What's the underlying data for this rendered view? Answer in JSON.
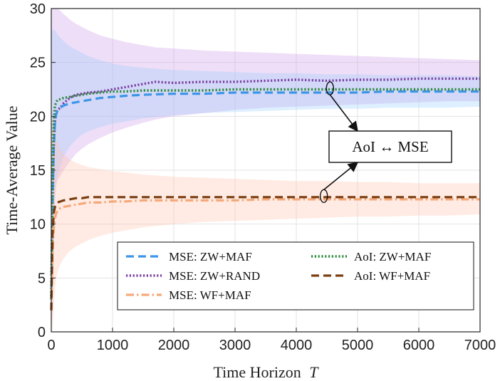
{
  "chart_data": {
    "type": "line",
    "xlabel": "Time Horizon",
    "xlabel_var": "T",
    "ylabel": "Time-Average Value",
    "xlim": [
      0,
      7000
    ],
    "ylim": [
      0,
      30
    ],
    "x_ticks": [
      0,
      1000,
      2000,
      3000,
      4000,
      5000,
      6000,
      7000
    ],
    "y_ticks": [
      0,
      5,
      10,
      15,
      20,
      25,
      30
    ],
    "grid": true,
    "annotation": {
      "text": "AoI ↔ MSE",
      "targets": [
        {
          "x": 4550,
          "y": 22.6
        },
        {
          "x": 4450,
          "y": 12.6
        }
      ]
    },
    "legend": {
      "placement": "bottom-right",
      "entries": [
        {
          "series": "mse_zw_maf"
        },
        {
          "series": "aoi_zw_maf"
        },
        {
          "series": "mse_zw_rand"
        },
        {
          "series": "aoi_wf_maf"
        },
        {
          "series": "mse_wf_maf"
        }
      ]
    },
    "series": [
      {
        "id": "mse_zw_rand",
        "name": "MSE: ZW+RAND",
        "color": "#7b3fa0",
        "style": "dotted",
        "band_color": "#cc99e6",
        "x": [
          0,
          20,
          40,
          60,
          80,
          100,
          150,
          200,
          300,
          400,
          500,
          600,
          800,
          1000,
          1200,
          1500,
          1700,
          2000,
          2500,
          3000,
          3500,
          4000,
          4500,
          5000,
          5500,
          6000,
          6500,
          7000
        ],
        "y": [
          3,
          12,
          17,
          19.5,
          20.3,
          20.6,
          20.8,
          21.2,
          21.7,
          22.0,
          22.1,
          22.2,
          22.3,
          22.5,
          22.7,
          23.0,
          23.2,
          23.1,
          23.2,
          23.2,
          23.3,
          23.4,
          23.3,
          23.4,
          23.4,
          23.5,
          23.5,
          23.5
        ],
        "band_upper": [
          30,
          30,
          30,
          30,
          30,
          30,
          29.8,
          29.5,
          29.0,
          28.6,
          28.3,
          28.0,
          27.5,
          27.2,
          26.9,
          26.6,
          26.4,
          26.3,
          26.1,
          26.0,
          25.9,
          25.8,
          25.7,
          25.6,
          25.5,
          25.4,
          25.3,
          25.2
        ],
        "band_lower": [
          0,
          2,
          8,
          12,
          13.5,
          14.0,
          14.5,
          15.0,
          15.8,
          16.5,
          17.0,
          17.4,
          18.0,
          18.5,
          18.9,
          19.4,
          19.7,
          20.0,
          20.3,
          20.6,
          20.8,
          20.9,
          21.0,
          21.1,
          21.2,
          21.3,
          21.4,
          21.4
        ]
      },
      {
        "id": "mse_zw_maf",
        "name": "MSE: ZW+MAF",
        "color": "#3d95e8",
        "style": "dashed",
        "band_color": "#99ccff",
        "x": [
          0,
          20,
          40,
          60,
          80,
          100,
          150,
          200,
          300,
          400,
          500,
          600,
          800,
          1000,
          1200,
          1500,
          2000,
          2500,
          3000,
          3500,
          4000,
          4500,
          5000,
          5500,
          6000,
          6500,
          7000
        ],
        "y": [
          3,
          12,
          17,
          19.5,
          20.2,
          20.5,
          20.8,
          21.0,
          21.2,
          21.3,
          21.4,
          21.5,
          21.7,
          21.8,
          21.9,
          22.0,
          22.1,
          22.1,
          22.2,
          22.2,
          22.2,
          22.2,
          22.2,
          22.3,
          22.3,
          22.3,
          22.3
        ],
        "band_upper": [
          28,
          28,
          28,
          28,
          27.8,
          27.6,
          27.3,
          27.0,
          26.5,
          26.2,
          25.9,
          25.6,
          25.2,
          24.9,
          24.7,
          24.5,
          24.3,
          24.2,
          24.1,
          24.0,
          24.0,
          23.9,
          23.9,
          23.8,
          23.8,
          23.8,
          23.7
        ],
        "band_lower": [
          0,
          4,
          10,
          13,
          14.0,
          14.5,
          15.5,
          16.2,
          17.2,
          17.8,
          18.3,
          18.6,
          19.0,
          19.3,
          19.5,
          19.8,
          20.1,
          20.3,
          20.4,
          20.5,
          20.6,
          20.7,
          20.7,
          20.8,
          20.8,
          20.8,
          20.9
        ]
      },
      {
        "id": "aoi_zw_maf",
        "name": "AoI: ZW+MAF",
        "color": "#2e8b3e",
        "style": "dotted",
        "band_color": null,
        "x": [
          0,
          20,
          40,
          60,
          80,
          100,
          150,
          200,
          300,
          400,
          500,
          600,
          800,
          1000,
          1200,
          1500,
          2000,
          2500,
          3000,
          3500,
          4000,
          4500,
          5000,
          5500,
          6000,
          6500,
          7000
        ],
        "y": [
          3,
          14,
          19.5,
          21.0,
          21.3,
          21.5,
          21.6,
          21.7,
          21.8,
          21.9,
          22.0,
          22.1,
          22.2,
          22.3,
          22.3,
          22.4,
          22.4,
          22.4,
          22.5,
          22.5,
          22.5,
          22.5,
          22.5,
          22.5,
          22.5,
          22.5,
          22.5
        ],
        "band_upper": null,
        "band_lower": null
      },
      {
        "id": "mse_wf_maf",
        "name": "MSE: WF+MAF",
        "color": "#f5a97a",
        "style": "dashdot",
        "band_color": "#ffc0a8",
        "x": [
          0,
          20,
          40,
          60,
          80,
          100,
          150,
          200,
          300,
          400,
          500,
          600,
          800,
          1000,
          1200,
          1500,
          2000,
          2500,
          3000,
          3500,
          4000,
          4500,
          5000,
          5500,
          6000,
          6500,
          7000
        ],
        "y": [
          2,
          7,
          9.5,
          10.5,
          11.0,
          11.2,
          11.5,
          11.6,
          11.7,
          11.8,
          11.9,
          12.0,
          12.0,
          12.1,
          12.1,
          12.2,
          12.2,
          12.2,
          12.2,
          12.3,
          12.3,
          12.3,
          12.3,
          12.3,
          12.3,
          12.3,
          12.3
        ],
        "band_upper": [
          20,
          19.5,
          19.0,
          18.5,
          18.0,
          17.6,
          17.0,
          16.5,
          16.0,
          15.7,
          15.5,
          15.3,
          15.1,
          14.9,
          14.8,
          14.6,
          14.4,
          14.3,
          14.2,
          14.1,
          14.0,
          14.0,
          13.9,
          13.9,
          13.8,
          13.8,
          13.8
        ],
        "band_lower": [
          0,
          0,
          2,
          4,
          5.0,
          5.5,
          6.3,
          6.8,
          7.5,
          7.9,
          8.2,
          8.5,
          8.9,
          9.2,
          9.4,
          9.7,
          10.0,
          10.2,
          10.3,
          10.4,
          10.5,
          10.6,
          10.7,
          10.7,
          10.8,
          10.8,
          10.9
        ]
      },
      {
        "id": "aoi_wf_maf",
        "name": "AoI: WF+MAF",
        "color": "#7a3e12",
        "style": "dashed",
        "band_color": null,
        "x": [
          0,
          20,
          40,
          60,
          80,
          100,
          150,
          200,
          300,
          400,
          500,
          600,
          800,
          1000,
          1200,
          1500,
          2000,
          2500,
          3000,
          3500,
          4000,
          4500,
          5000,
          5500,
          6000,
          6500,
          7000
        ],
        "y": [
          2,
          9,
          11.0,
          11.6,
          11.9,
          12.0,
          12.1,
          12.2,
          12.3,
          12.4,
          12.4,
          12.5,
          12.5,
          12.5,
          12.5,
          12.5,
          12.5,
          12.5,
          12.5,
          12.5,
          12.5,
          12.5,
          12.5,
          12.5,
          12.5,
          12.5,
          12.5
        ],
        "band_upper": null,
        "band_lower": null
      }
    ]
  }
}
